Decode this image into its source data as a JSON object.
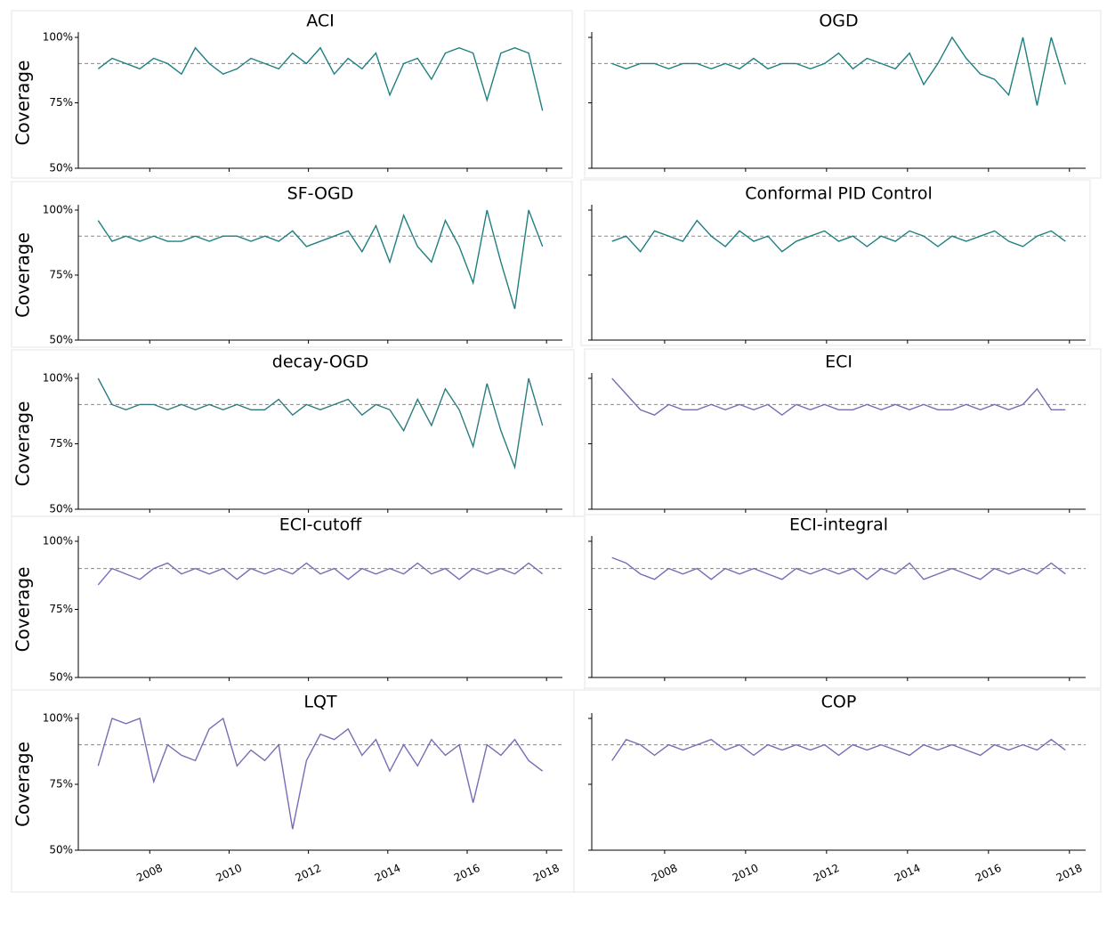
{
  "chart_data": [
    {
      "type": "line",
      "title": "ACI",
      "ylabel": "Coverage",
      "xlim": [
        2006.2,
        2018.4
      ],
      "ylim": [
        50,
        100
      ],
      "xticks": [
        2008,
        2010,
        2012,
        2014,
        2016,
        2018
      ],
      "yticks": [
        {
          "value": 50,
          "label": "50%"
        },
        {
          "value": 75,
          "label": "75%"
        },
        {
          "value": 100,
          "label": "100%"
        }
      ],
      "hline": 90,
      "x": [
        2006.7,
        2007.05,
        2007.4,
        2007.75,
        2008.1,
        2008.45,
        2008.8,
        2009.15,
        2009.5,
        2009.85,
        2010.2,
        2010.55,
        2010.9,
        2011.25,
        2011.6,
        2011.95,
        2012.3,
        2012.65,
        2013.0,
        2013.35,
        2013.7,
        2014.05,
        2014.4,
        2014.75,
        2015.1,
        2015.45,
        2015.8,
        2016.15,
        2016.5,
        2016.85,
        2017.2,
        2017.55,
        2017.9
      ],
      "series": [
        {
          "color": "#1f7f80",
          "values": [
            88,
            92,
            90,
            88,
            92,
            90,
            86,
            96,
            90,
            86,
            88,
            92,
            90,
            88,
            94,
            90,
            96,
            86,
            92,
            88,
            94,
            78,
            90,
            92,
            84,
            94,
            96,
            94,
            76,
            94,
            96,
            94,
            72
          ]
        }
      ]
    },
    {
      "type": "line",
      "title": "OGD",
      "xlim": [
        2006.2,
        2018.4
      ],
      "ylim": [
        50,
        100
      ],
      "xticks": [
        2008,
        2010,
        2012,
        2014,
        2016,
        2018
      ],
      "yticks": [
        50,
        75,
        100
      ],
      "hline": 90,
      "x": [
        2006.7,
        2007.05,
        2007.4,
        2007.75,
        2008.1,
        2008.45,
        2008.8,
        2009.15,
        2009.5,
        2009.85,
        2010.2,
        2010.55,
        2010.9,
        2011.25,
        2011.6,
        2011.95,
        2012.3,
        2012.65,
        2013.0,
        2013.35,
        2013.7,
        2014.05,
        2014.4,
        2014.75,
        2015.1,
        2015.45,
        2015.8,
        2016.15,
        2016.5,
        2016.85,
        2017.2,
        2017.55,
        2017.9
      ],
      "series": [
        {
          "color": "#1f7f80",
          "values": [
            90,
            88,
            90,
            90,
            88,
            90,
            90,
            88,
            90,
            88,
            92,
            88,
            90,
            90,
            88,
            90,
            94,
            88,
            92,
            90,
            88,
            94,
            82,
            90,
            100,
            92,
            86,
            84,
            78,
            100,
            74,
            100,
            82
          ]
        }
      ]
    },
    {
      "type": "line",
      "title": "SF-OGD",
      "ylabel": "Coverage",
      "xlim": [
        2006.2,
        2018.4
      ],
      "ylim": [
        50,
        100
      ],
      "xticks": [
        2008,
        2010,
        2012,
        2014,
        2016,
        2018
      ],
      "yticks": [
        {
          "value": 50,
          "label": "50%"
        },
        {
          "value": 75,
          "label": "75%"
        },
        {
          "value": 100,
          "label": "100%"
        }
      ],
      "hline": 90,
      "x": [
        2006.7,
        2007.05,
        2007.4,
        2007.75,
        2008.1,
        2008.45,
        2008.8,
        2009.15,
        2009.5,
        2009.85,
        2010.2,
        2010.55,
        2010.9,
        2011.25,
        2011.6,
        2011.95,
        2012.3,
        2012.65,
        2013.0,
        2013.35,
        2013.7,
        2014.05,
        2014.4,
        2014.75,
        2015.1,
        2015.45,
        2015.8,
        2016.15,
        2016.5,
        2016.85,
        2017.2,
        2017.55,
        2017.9
      ],
      "series": [
        {
          "color": "#1f7f80",
          "values": [
            96,
            88,
            90,
            88,
            90,
            88,
            88,
            90,
            88,
            90,
            90,
            88,
            90,
            88,
            92,
            86,
            88,
            90,
            92,
            84,
            94,
            80,
            98,
            86,
            80,
            96,
            86,
            72,
            100,
            80,
            62,
            100,
            86
          ]
        }
      ]
    },
    {
      "type": "line",
      "title": "Conformal PID Control",
      "xlim": [
        2006.2,
        2018.4
      ],
      "ylim": [
        50,
        100
      ],
      "xticks": [
        2008,
        2010,
        2012,
        2014,
        2016,
        2018
      ],
      "yticks": [
        50,
        75,
        100
      ],
      "hline": 90,
      "x": [
        2006.7,
        2007.05,
        2007.4,
        2007.75,
        2008.1,
        2008.45,
        2008.8,
        2009.15,
        2009.5,
        2009.85,
        2010.2,
        2010.55,
        2010.9,
        2011.25,
        2011.6,
        2011.95,
        2012.3,
        2012.65,
        2013.0,
        2013.35,
        2013.7,
        2014.05,
        2014.4,
        2014.75,
        2015.1,
        2015.45,
        2015.8,
        2016.15,
        2016.5,
        2016.85,
        2017.2,
        2017.55,
        2017.9
      ],
      "series": [
        {
          "color": "#1f7f80",
          "values": [
            88,
            90,
            84,
            92,
            90,
            88,
            96,
            90,
            86,
            92,
            88,
            90,
            84,
            88,
            90,
            92,
            88,
            90,
            86,
            90,
            88,
            92,
            90,
            86,
            90,
            88,
            90,
            92,
            88,
            86,
            90,
            92,
            88
          ]
        }
      ]
    },
    {
      "type": "line",
      "title": "decay-OGD",
      "ylabel": "Coverage",
      "xlim": [
        2006.2,
        2018.4
      ],
      "ylim": [
        50,
        100
      ],
      "xticks": [
        2008,
        2010,
        2012,
        2014,
        2016,
        2018
      ],
      "yticks": [
        {
          "value": 50,
          "label": "50%"
        },
        {
          "value": 75,
          "label": "75%"
        },
        {
          "value": 100,
          "label": "100%"
        }
      ],
      "hline": 90,
      "x": [
        2006.7,
        2007.05,
        2007.4,
        2007.75,
        2008.1,
        2008.45,
        2008.8,
        2009.15,
        2009.5,
        2009.85,
        2010.2,
        2010.55,
        2010.9,
        2011.25,
        2011.6,
        2011.95,
        2012.3,
        2012.65,
        2013.0,
        2013.35,
        2013.7,
        2014.05,
        2014.4,
        2014.75,
        2015.1,
        2015.45,
        2015.8,
        2016.15,
        2016.5,
        2016.85,
        2017.2,
        2017.55,
        2017.9
      ],
      "series": [
        {
          "color": "#2a7c80",
          "values": [
            100,
            90,
            88,
            90,
            90,
            88,
            90,
            88,
            90,
            88,
            90,
            88,
            88,
            92,
            86,
            90,
            88,
            90,
            92,
            86,
            90,
            88,
            80,
            92,
            82,
            96,
            88,
            74,
            98,
            80,
            66,
            100,
            82
          ]
        }
      ]
    },
    {
      "type": "line",
      "title": "ECI",
      "xlim": [
        2006.2,
        2018.4
      ],
      "ylim": [
        50,
        100
      ],
      "xticks": [
        2008,
        2010,
        2012,
        2014,
        2016,
        2018
      ],
      "yticks": [
        50,
        75,
        100
      ],
      "hline": 90,
      "x": [
        2006.7,
        2007.05,
        2007.4,
        2007.75,
        2008.1,
        2008.45,
        2008.8,
        2009.15,
        2009.5,
        2009.85,
        2010.2,
        2010.55,
        2010.9,
        2011.25,
        2011.6,
        2011.95,
        2012.3,
        2012.65,
        2013.0,
        2013.35,
        2013.7,
        2014.05,
        2014.4,
        2014.75,
        2015.1,
        2015.45,
        2015.8,
        2016.15,
        2016.5,
        2016.85,
        2017.2,
        2017.55,
        2017.9
      ],
      "series": [
        {
          "color": "#7a6bb5",
          "values": [
            100,
            94,
            88,
            86,
            90,
            88,
            88,
            90,
            88,
            90,
            88,
            90,
            86,
            90,
            88,
            90,
            88,
            88,
            90,
            88,
            90,
            88,
            90,
            88,
            88,
            90,
            88,
            90,
            88,
            90,
            96,
            88,
            88
          ]
        }
      ]
    },
    {
      "type": "line",
      "title": "ECI-cutoff",
      "ylabel": "Coverage",
      "xlim": [
        2006.2,
        2018.4
      ],
      "ylim": [
        50,
        100
      ],
      "xticks": [
        2008,
        2010,
        2012,
        2014,
        2016,
        2018
      ],
      "yticks": [
        {
          "value": 50,
          "label": "50%"
        },
        {
          "value": 75,
          "label": "75%"
        },
        {
          "value": 100,
          "label": "100%"
        }
      ],
      "hline": 90,
      "x": [
        2006.7,
        2007.05,
        2007.4,
        2007.75,
        2008.1,
        2008.45,
        2008.8,
        2009.15,
        2009.5,
        2009.85,
        2010.2,
        2010.55,
        2010.9,
        2011.25,
        2011.6,
        2011.95,
        2012.3,
        2012.65,
        2013.0,
        2013.35,
        2013.7,
        2014.05,
        2014.4,
        2014.75,
        2015.1,
        2015.45,
        2015.8,
        2016.15,
        2016.5,
        2016.85,
        2017.2,
        2017.55,
        2017.9
      ],
      "series": [
        {
          "color": "#7a6bb5",
          "values": [
            84,
            90,
            88,
            86,
            90,
            92,
            88,
            90,
            88,
            90,
            86,
            90,
            88,
            90,
            88,
            92,
            88,
            90,
            86,
            90,
            88,
            90,
            88,
            92,
            88,
            90,
            86,
            90,
            88,
            90,
            88,
            92,
            88
          ]
        }
      ]
    },
    {
      "type": "line",
      "title": "ECI-integral",
      "xlim": [
        2006.2,
        2018.4
      ],
      "ylim": [
        50,
        100
      ],
      "xticks": [
        2008,
        2010,
        2012,
        2014,
        2016,
        2018
      ],
      "yticks": [
        50,
        75,
        100
      ],
      "hline": 90,
      "x": [
        2006.7,
        2007.05,
        2007.4,
        2007.75,
        2008.1,
        2008.45,
        2008.8,
        2009.15,
        2009.5,
        2009.85,
        2010.2,
        2010.55,
        2010.9,
        2011.25,
        2011.6,
        2011.95,
        2012.3,
        2012.65,
        2013.0,
        2013.35,
        2013.7,
        2014.05,
        2014.4,
        2014.75,
        2015.1,
        2015.45,
        2015.8,
        2016.15,
        2016.5,
        2016.85,
        2017.2,
        2017.55,
        2017.9
      ],
      "series": [
        {
          "color": "#7a6bb5",
          "values": [
            94,
            92,
            88,
            86,
            90,
            88,
            90,
            86,
            90,
            88,
            90,
            88,
            86,
            90,
            88,
            90,
            88,
            90,
            86,
            90,
            88,
            92,
            86,
            88,
            90,
            88,
            86,
            90,
            88,
            90,
            88,
            92,
            88
          ]
        }
      ]
    },
    {
      "type": "line",
      "title": "LQT",
      "ylabel": "Coverage",
      "xlim": [
        2006.2,
        2018.4
      ],
      "ylim": [
        50,
        100
      ],
      "xticks": [
        2008,
        2010,
        2012,
        2014,
        2016,
        2018
      ],
      "yticks": [
        {
          "value": 50,
          "label": "50%"
        },
        {
          "value": 75,
          "label": "75%"
        },
        {
          "value": 100,
          "label": "100%"
        }
      ],
      "hline": 90,
      "x": [
        2006.7,
        2007.05,
        2007.4,
        2007.75,
        2008.1,
        2008.45,
        2008.8,
        2009.15,
        2009.5,
        2009.85,
        2010.2,
        2010.55,
        2010.9,
        2011.25,
        2011.6,
        2011.95,
        2012.3,
        2012.65,
        2013.0,
        2013.35,
        2013.7,
        2014.05,
        2014.4,
        2014.75,
        2015.1,
        2015.45,
        2015.8,
        2016.15,
        2016.5,
        2016.85,
        2017.2,
        2017.55,
        2017.9
      ],
      "series": [
        {
          "color": "#7a6bb5",
          "values": [
            82,
            100,
            98,
            100,
            76,
            90,
            86,
            84,
            96,
            100,
            82,
            88,
            84,
            90,
            58,
            84,
            94,
            92,
            96,
            86,
            92,
            80,
            90,
            82,
            92,
            86,
            90,
            68,
            90,
            86,
            92,
            84,
            80
          ]
        }
      ]
    },
    {
      "type": "line",
      "title": "COP",
      "xlim": [
        2006.2,
        2018.4
      ],
      "ylim": [
        50,
        100
      ],
      "xticks": [
        2008,
        2010,
        2012,
        2014,
        2016,
        2018
      ],
      "yticks": [
        50,
        75,
        100
      ],
      "hline": 90,
      "x": [
        2006.7,
        2007.05,
        2007.4,
        2007.75,
        2008.1,
        2008.45,
        2008.8,
        2009.15,
        2009.5,
        2009.85,
        2010.2,
        2010.55,
        2010.9,
        2011.25,
        2011.6,
        2011.95,
        2012.3,
        2012.65,
        2013.0,
        2013.35,
        2013.7,
        2014.05,
        2014.4,
        2014.75,
        2015.1,
        2015.45,
        2015.8,
        2016.15,
        2016.5,
        2016.85,
        2017.2,
        2017.55,
        2017.9
      ],
      "series": [
        {
          "color": "#7a6bb5",
          "values": [
            84,
            92,
            90,
            86,
            90,
            88,
            90,
            92,
            88,
            90,
            86,
            90,
            88,
            90,
            88,
            90,
            86,
            90,
            88,
            90,
            88,
            86,
            90,
            88,
            90,
            88,
            86,
            90,
            88,
            90,
            88,
            92,
            88
          ]
        }
      ]
    }
  ]
}
